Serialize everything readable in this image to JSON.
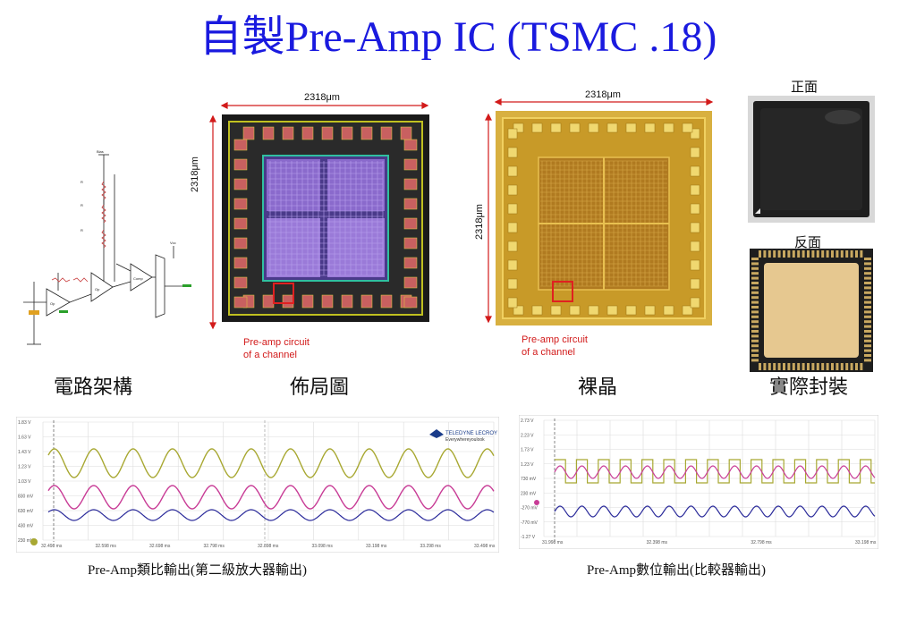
{
  "title": "自製Pre-Amp IC (TSMC .18)",
  "panels": {
    "schematic_caption": "電路架構",
    "layout": {
      "caption": "佈局圖",
      "width_label": "2318μm",
      "height_label": "2318μm",
      "note_line1": "Pre-amp circuit",
      "note_line2": "of a channel"
    },
    "die": {
      "caption": "裸晶",
      "width_label": "2318μm",
      "height_label": "2318μm",
      "note_line1": "Pre-amp circuit",
      "note_line2": "of a channel"
    },
    "package": {
      "caption": "實際封裝",
      "front_label": "正面",
      "back_label": "反面"
    }
  },
  "scope_left": {
    "caption": "Pre-Amp類比輸出(第二級放大器輸出)",
    "brand_line1": "TELEDYNE LECROY",
    "brand_line2": "Everywhereyoulook",
    "y_ticks": [
      "1.83 V",
      "1.63 V",
      "1.43 V",
      "1.23 V",
      "1.03 V",
      "830 mV",
      "630 mV",
      "430 mV",
      "230 mV"
    ],
    "x_ticks": [
      "32.498 ms",
      "32.598 ms",
      "32.698 ms",
      "32.798 ms",
      "32.898 ms",
      "33.098 ms",
      "33.198 ms",
      "33.298 ms",
      "33.498 ms"
    ],
    "colors": {
      "ch1": "#a8a832",
      "ch2": "#c83c96",
      "ch3": "#2a2a9a"
    }
  },
  "scope_right": {
    "caption": "Pre-Amp數位輸出(比較器輸出)",
    "y_ticks": [
      "2.73 V",
      "2.23 V",
      "1.73 V",
      "1.23 V",
      "730 mV",
      "230 mV",
      "-270 mV",
      "-770 mV",
      "-1.27 V"
    ],
    "x_ticks": [
      "31.998 ms",
      "32.398 ms",
      "32.798 ms",
      "33.198 ms"
    ],
    "colors": {
      "digital": "#a8a832",
      "ch2": "#c83c96",
      "ch3": "#2a2a9a"
    }
  },
  "colors": {
    "title": "#1a1adf",
    "annotation": "#d21a1a"
  }
}
